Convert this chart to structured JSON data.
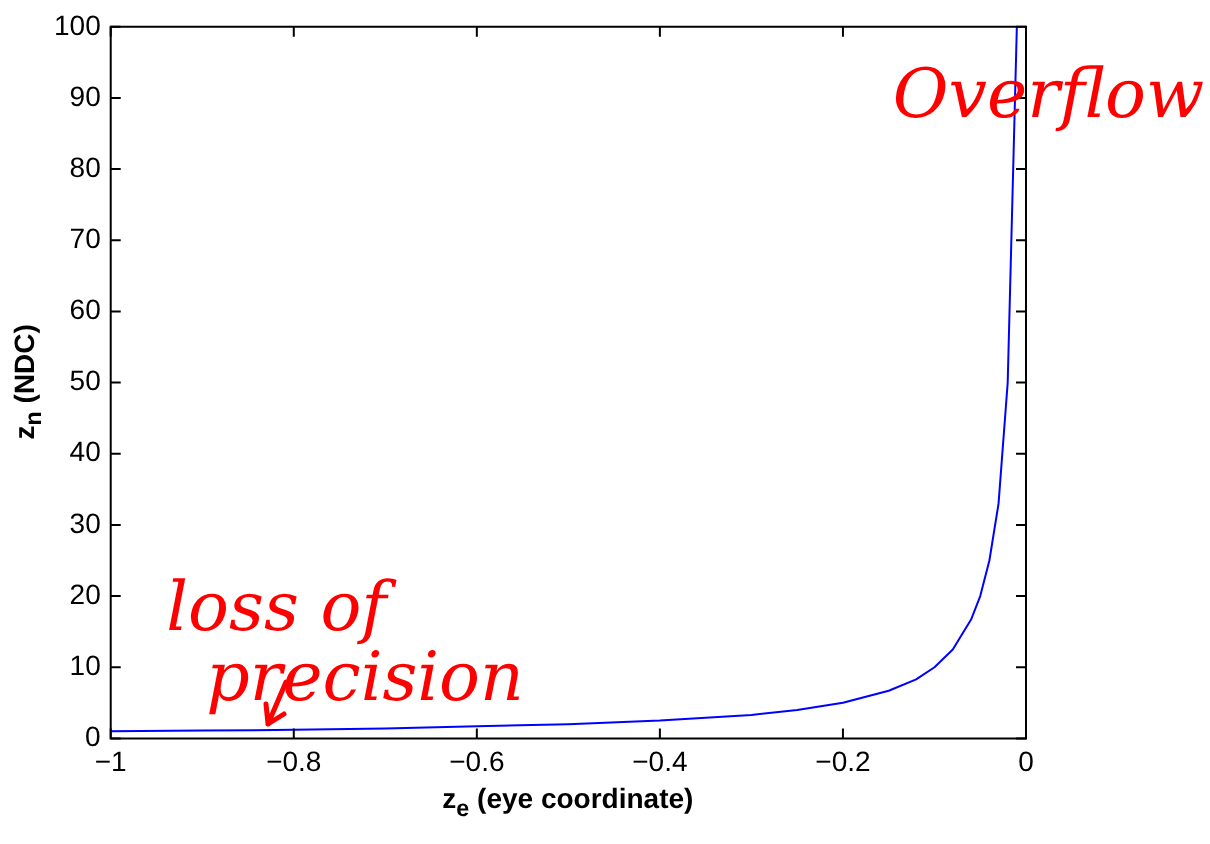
{
  "chart_data": {
    "type": "line",
    "xlabel": "z$_{e}$ (eye coordinate)",
    "ylabel": "z$_{n}$ (NDC)",
    "x": [
      -1,
      -0.9,
      -0.8,
      -0.7,
      -0.6,
      -0.5,
      -0.4,
      -0.3,
      -0.25,
      -0.2,
      -0.15,
      -0.12,
      -0.1,
      -0.08,
      -0.06,
      -0.05,
      -0.04,
      -0.03,
      -0.02,
      -0.01
    ],
    "series": [
      {
        "color": "#0000ff",
        "values": [
          1,
          1.1,
          1.2,
          1.4,
          1.7,
          2,
          2.5,
          3.3,
          4,
          5,
          6.7,
          8.3,
          10,
          12.5,
          16.7,
          20,
          25,
          33,
          50,
          100
        ]
      }
    ],
    "xlim": [
      -1,
      0
    ],
    "xticks": [
      -1,
      -0.8,
      -0.6,
      -0.4,
      -0.2,
      0
    ],
    "ylim": [
      0,
      100
    ],
    "yticks": [
      0,
      10,
      20,
      30,
      40,
      50,
      60,
      70,
      80,
      90,
      100
    ],
    "grid": false,
    "legend": false,
    "marker": "none",
    "line_style": "solid",
    "annotations": [
      {
        "text": "Overflow",
        "x": -0.01,
        "y": 100
      },
      {
        "text": "loss of precision",
        "x": -0.83,
        "y": 1.2
      }
    ]
  }
}
